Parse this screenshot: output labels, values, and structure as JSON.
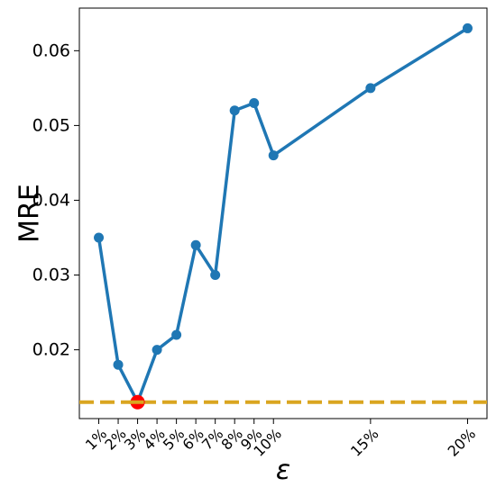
{
  "chart_data": {
    "type": "line",
    "xlabel": "ε",
    "ylabel": "MRE",
    "x": [
      1,
      2,
      3,
      4,
      5,
      6,
      7,
      8,
      9,
      10,
      15,
      20
    ],
    "x_tick_labels": [
      "1%",
      "2%",
      "3%",
      "4%",
      "5%",
      "6%",
      "7%",
      "8%",
      "9%",
      "10%",
      "15%",
      "20%"
    ],
    "y": [
      0.035,
      0.018,
      0.013,
      0.02,
      0.022,
      0.034,
      0.03,
      0.052,
      0.053,
      0.046,
      0.055,
      0.063
    ],
    "y_ticks": [
      0.02,
      0.03,
      0.04,
      0.05,
      0.06
    ],
    "y_tick_labels": [
      "0.02",
      "0.03",
      "0.04",
      "0.05",
      "0.06"
    ],
    "xlim": [
      0,
      21
    ],
    "ylim": [
      0.0108,
      0.0657
    ],
    "baseline_y": 0.013,
    "highlight_x": 3,
    "grid": false,
    "colors": {
      "line": "#1f77b4",
      "baseline": "#daa520",
      "highlight": "#ff0000"
    }
  }
}
